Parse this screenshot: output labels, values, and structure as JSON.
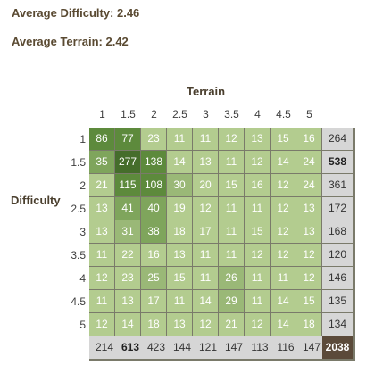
{
  "stats": {
    "average_difficulty": "Average Difficulty: 2.46",
    "average_terrain": "Average Terrain: 2.42"
  },
  "axes": {
    "terrain_title": "Terrain",
    "difficulty_title": "Difficulty",
    "terrain_labels": [
      "1",
      "1.5",
      "2",
      "2.5",
      "3",
      "3.5",
      "4",
      "4.5",
      "5"
    ],
    "difficulty_labels": [
      "1",
      "1.5",
      "2",
      "2.5",
      "3",
      "3.5",
      "4",
      "4.5",
      "5"
    ]
  },
  "colors": {
    "low": "#b3cc8f",
    "mid": "#9ab877",
    "high": "#7fa55c",
    "very_high": "#5d8a3c",
    "max": "#456d2b",
    "total_bg": "#d6d6d6",
    "grand_total_bg": "#5b4a3a"
  },
  "grid": {
    "rows": [
      {
        "cells": [
          86,
          77,
          23,
          11,
          11,
          12,
          13,
          15,
          16
        ],
        "total": "264",
        "total_bold": false
      },
      {
        "cells": [
          35,
          277,
          138,
          14,
          13,
          11,
          12,
          14,
          24
        ],
        "total": "538",
        "total_bold": true
      },
      {
        "cells": [
          21,
          115,
          108,
          30,
          20,
          15,
          16,
          12,
          24
        ],
        "total": "361",
        "total_bold": false
      },
      {
        "cells": [
          13,
          41,
          40,
          19,
          12,
          11,
          11,
          12,
          13
        ],
        "total": "172",
        "total_bold": false
      },
      {
        "cells": [
          13,
          31,
          38,
          18,
          17,
          11,
          15,
          12,
          13
        ],
        "total": "168",
        "total_bold": false
      },
      {
        "cells": [
          11,
          22,
          16,
          13,
          11,
          11,
          12,
          12,
          12
        ],
        "total": "120",
        "total_bold": false
      },
      {
        "cells": [
          12,
          23,
          25,
          15,
          11,
          26,
          11,
          11,
          12
        ],
        "total": "146",
        "total_bold": false
      },
      {
        "cells": [
          11,
          13,
          17,
          11,
          14,
          29,
          11,
          14,
          15
        ],
        "total": "135",
        "total_bold": false
      },
      {
        "cells": [
          12,
          14,
          18,
          13,
          12,
          21,
          12,
          14,
          18
        ],
        "total": "134",
        "total_bold": false
      }
    ],
    "column_totals": [
      "214",
      "613",
      "423",
      "144",
      "121",
      "147",
      "113",
      "116",
      "147"
    ],
    "column_total_bold_index": 1,
    "grand_total": "2038"
  }
}
